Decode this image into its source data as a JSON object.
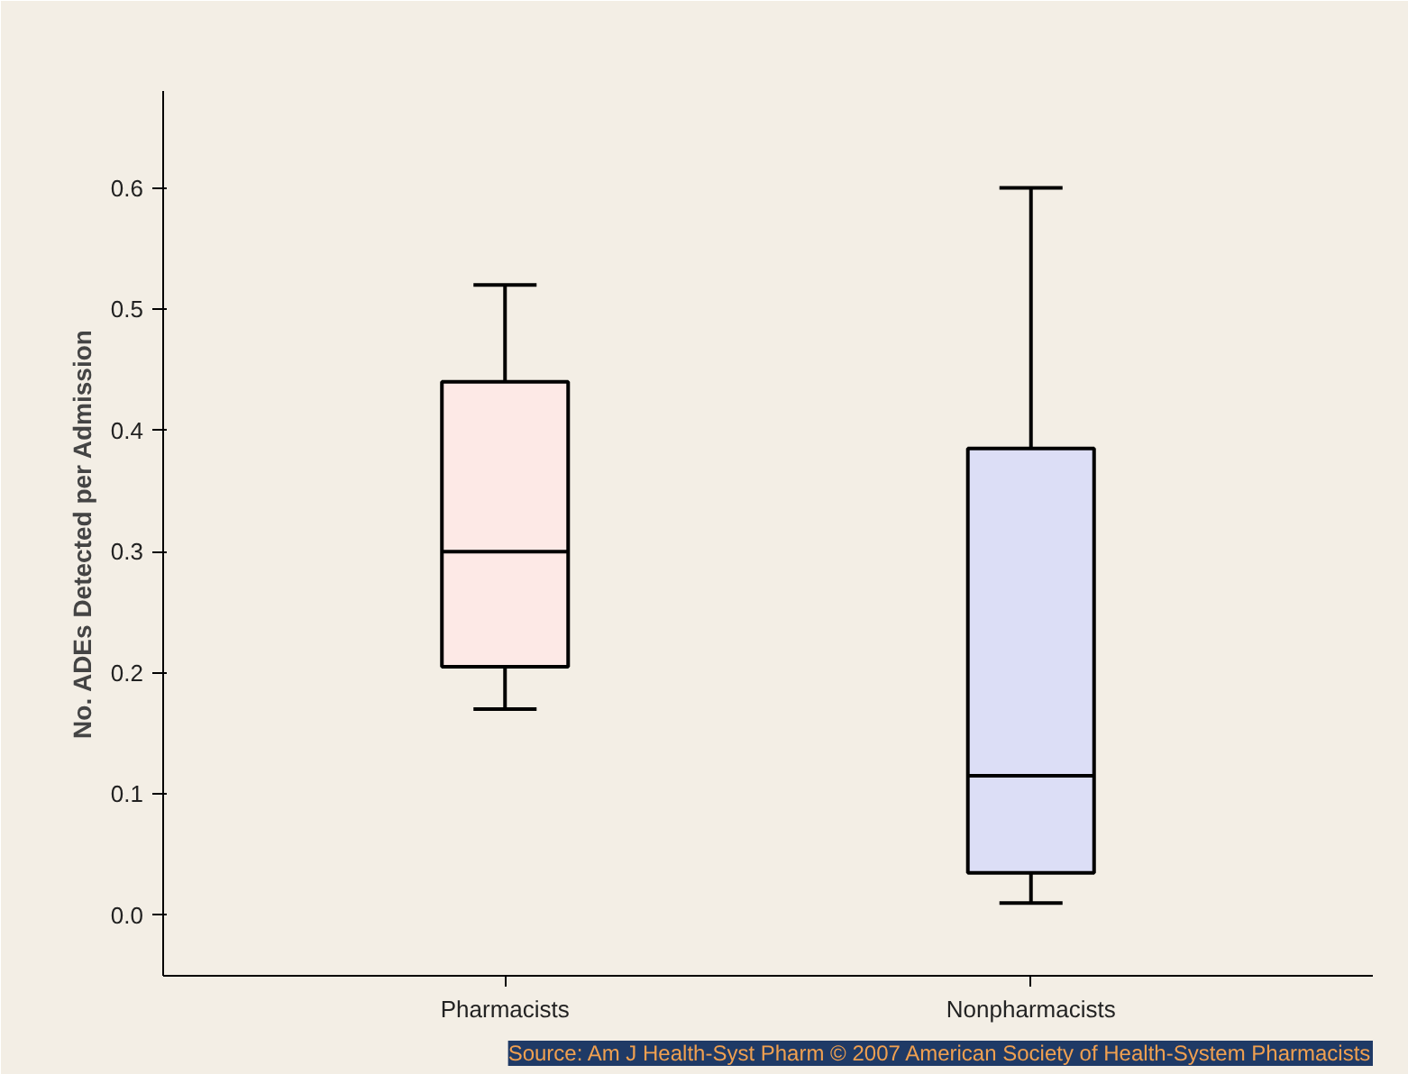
{
  "chart_data": {
    "type": "box",
    "ylabel": "No. ADEs Detected per Admission",
    "categories": [
      "Pharmacists",
      "Nonpharmacists"
    ],
    "boxes": [
      {
        "low": 0.17,
        "q1": 0.205,
        "median": 0.3,
        "q3": 0.44,
        "high": 0.52
      },
      {
        "low": 0.01,
        "q1": 0.035,
        "median": 0.115,
        "q3": 0.385,
        "high": 0.6
      }
    ],
    "colors": [
      "#fde9e6",
      "#dcdef6"
    ],
    "ylim": [
      -0.05,
      0.68
    ],
    "yticks": [
      {
        "value": 0,
        "label": "0.0"
      },
      0.1,
      0.2,
      0.3,
      0.4,
      0.5,
      0.6
    ],
    "grid": false,
    "annotations": [
      "Source: Am J Health-Syst Pharm © 2007 American Society of Health-System Pharmacists"
    ]
  }
}
